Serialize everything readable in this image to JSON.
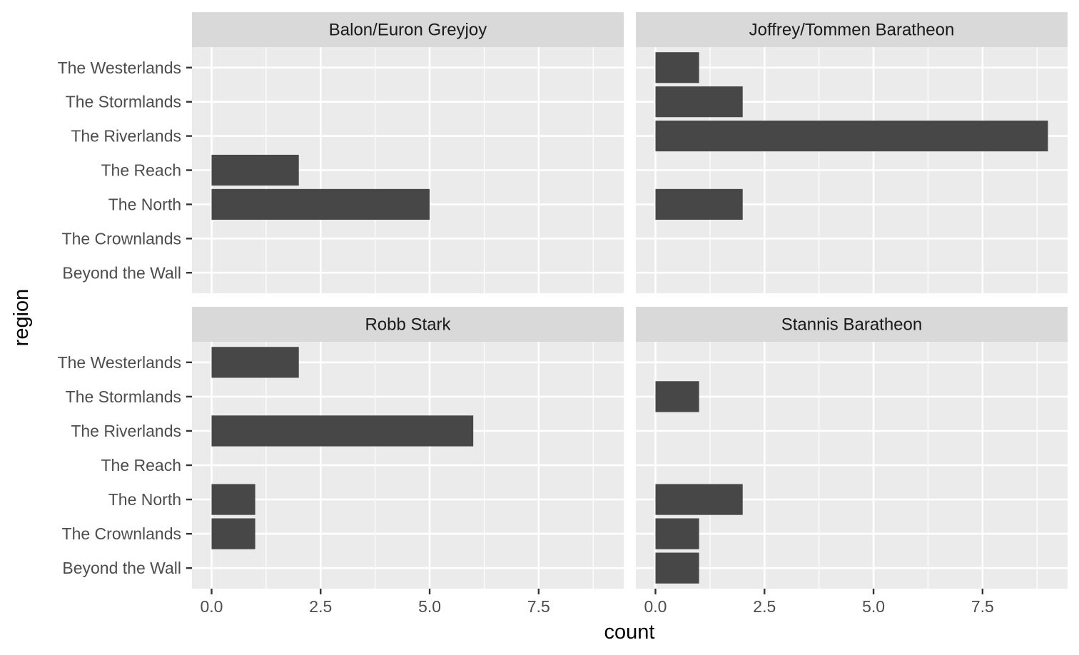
{
  "chart_data": {
    "type": "bar",
    "orientation": "horizontal",
    "xlabel": "count",
    "ylabel": "region",
    "xlim": [
      -0.45,
      9.45
    ],
    "x_ticks": [
      "0.0",
      "2.5",
      "5.0",
      "7.5"
    ],
    "x_tick_values": [
      0,
      2.5,
      5,
      7.5
    ],
    "categories": [
      "The Westerlands",
      "The Stormlands",
      "The Riverlands",
      "The Reach",
      "The North",
      "The Crownlands",
      "Beyond the Wall"
    ],
    "grid": true,
    "colors": {
      "bar": "#474747",
      "panel": "#ebebeb",
      "strip": "#d9d9d9",
      "grid": "#ffffff"
    },
    "panels": [
      {
        "name": "Balon/Euron Greyjoy",
        "values": [
          0,
          0,
          0,
          2,
          5,
          0,
          0
        ]
      },
      {
        "name": "Joffrey/Tommen Baratheon",
        "values": [
          1,
          2,
          9,
          0,
          2,
          0,
          0
        ]
      },
      {
        "name": "Robb Stark",
        "values": [
          2,
          0,
          6,
          0,
          1,
          1,
          0
        ]
      },
      {
        "name": "Stannis Baratheon",
        "values": [
          0,
          1,
          0,
          0,
          2,
          1,
          1
        ]
      }
    ]
  }
}
